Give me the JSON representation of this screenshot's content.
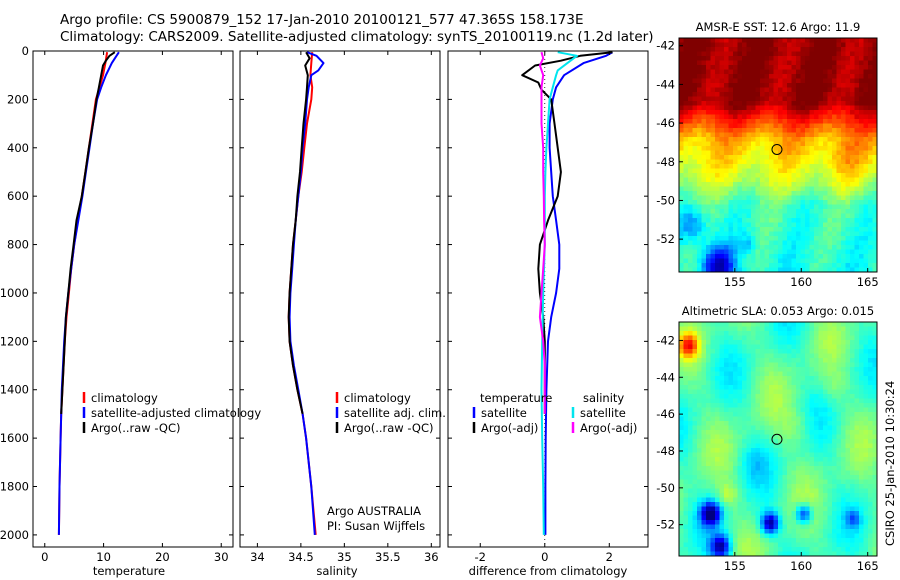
{
  "header": {
    "line1": "Argo profile: CS 5900879_152 17-Jan-2010 20100121_577 47.365S 158.173E",
    "line2": "Climatology: CARS2009. Satellite-adjusted climatology: synTS_20100119.nc (1.2d later)"
  },
  "credit": {
    "org": "Argo AUSTRALIA",
    "pi": "PI: Susan Wijffels",
    "stamp": "CSIRO 25-Jan-2010 10:30:24"
  },
  "colors": {
    "climatology": "#ff0000",
    "satellite": "#0000ff",
    "argo": "#000000",
    "sat_diff_sal": "#00e5ee",
    "argo_diff_sal": "#ff00ff"
  },
  "chart_data": [
    {
      "type": "line",
      "xlabel": "temperature",
      "xlim": [
        -2,
        32
      ],
      "xticks": [
        0,
        10,
        20,
        30
      ],
      "ylim": [
        2050,
        0
      ],
      "yticks": [
        0,
        200,
        400,
        600,
        800,
        1000,
        1200,
        1400,
        1600,
        1800,
        2000
      ],
      "legend": [
        "climatology",
        "satellite-adjusted climatology",
        "Argo(..raw -QC)"
      ],
      "series": [
        {
          "name": "climatology",
          "color": "red",
          "depth": [
            5,
            50,
            100,
            150,
            200,
            300,
            400,
            500,
            600,
            700,
            800,
            900,
            1000,
            1100,
            1200,
            1300,
            1400,
            1500,
            1600,
            1800,
            2000
          ],
          "values": [
            10.6,
            10.3,
            9.9,
            9.3,
            8.7,
            8.1,
            7.5,
            6.9,
            6.3,
            5.6,
            5.0,
            4.5,
            4.1,
            3.7,
            3.4,
            3.2,
            3.0,
            2.8,
            2.7,
            2.5,
            2.4
          ]
        },
        {
          "name": "satellite-adjusted climatology",
          "color": "blue",
          "depth": [
            5,
            20,
            50,
            100,
            150,
            200,
            300,
            400,
            500,
            600,
            700,
            800,
            900,
            1000,
            1100,
            1200,
            1300,
            1400,
            1500,
            1600,
            1800,
            2000
          ],
          "values": [
            12.6,
            12.2,
            11.4,
            10.4,
            9.6,
            8.9,
            8.2,
            7.6,
            7.0,
            6.4,
            5.7,
            5.0,
            4.5,
            4.0,
            3.6,
            3.3,
            3.1,
            2.9,
            2.8,
            2.7,
            2.5,
            2.4
          ]
        },
        {
          "name": "Argo(..raw -QC)",
          "color": "black",
          "depth": [
            5,
            20,
            40,
            60,
            100,
            150,
            200,
            300,
            400,
            500,
            600,
            700,
            800,
            900,
            1000,
            1100,
            1200,
            1300,
            1400,
            1500
          ],
          "values": [
            11.9,
            11.0,
            10.4,
            9.9,
            9.6,
            9.2,
            8.8,
            8.2,
            7.5,
            6.9,
            6.3,
            5.4,
            4.9,
            4.4,
            4.0,
            3.6,
            3.4,
            3.2,
            3.0,
            2.8
          ]
        }
      ]
    },
    {
      "type": "line",
      "xlabel": "salinity",
      "xlim": [
        33.8,
        36.1
      ],
      "xticks": [
        34,
        34.5,
        35,
        35.5,
        36
      ],
      "ylim": [
        2050,
        0
      ],
      "legend": [
        "climatology",
        "satellite adj. clim.",
        "Argo(..raw -QC)"
      ],
      "series": [
        {
          "name": "climatology",
          "color": "red",
          "depth": [
            5,
            50,
            100,
            150,
            200,
            300,
            400,
            500,
            600,
            700,
            800,
            900,
            1000,
            1100,
            1200,
            1300,
            1400,
            1500,
            1600,
            1800,
            2000
          ],
          "values": [
            34.63,
            34.62,
            34.61,
            34.63,
            34.62,
            34.57,
            34.54,
            34.51,
            34.47,
            34.44,
            34.41,
            34.39,
            34.37,
            34.36,
            34.37,
            34.41,
            34.46,
            34.52,
            34.56,
            34.62,
            34.67
          ]
        },
        {
          "name": "satellite adj. clim.",
          "color": "blue",
          "depth": [
            5,
            20,
            50,
            80,
            100,
            150,
            200,
            300,
            400,
            500,
            600,
            700,
            800,
            900,
            1000,
            1100,
            1200,
            1300,
            1400,
            1500,
            1600,
            1800,
            2000
          ],
          "values": [
            34.57,
            34.68,
            34.76,
            34.7,
            34.62,
            34.59,
            34.57,
            34.55,
            34.52,
            34.5,
            34.47,
            34.44,
            34.42,
            34.4,
            34.38,
            34.37,
            34.38,
            34.42,
            34.47,
            34.52,
            34.56,
            34.62,
            34.66
          ]
        },
        {
          "name": "Argo(..raw -QC)",
          "color": "black",
          "depth": [
            5,
            30,
            60,
            100,
            150,
            200,
            300,
            400,
            500,
            600,
            700,
            800,
            900,
            1000,
            1100,
            1200,
            1300,
            1400,
            1500
          ],
          "values": [
            34.56,
            34.6,
            34.55,
            34.58,
            34.57,
            34.56,
            34.53,
            34.51,
            34.49,
            34.46,
            34.44,
            34.41,
            34.39,
            34.37,
            34.36,
            34.37,
            34.41,
            34.46,
            34.52
          ]
        }
      ]
    },
    {
      "type": "line",
      "xlabel": "difference from climatology",
      "xlim": [
        -3,
        3.2
      ],
      "xticks": [
        -2,
        0,
        2
      ],
      "ylim": [
        2050,
        0
      ],
      "legend_groups": [
        {
          "heading": "temperature",
          "items": [
            "satellite",
            "Argo(-adj)"
          ]
        },
        {
          "heading": "salinity",
          "items": [
            "satellite",
            "Argo(-adj)"
          ]
        }
      ],
      "series": [
        {
          "name": "temperature satellite",
          "color": "blue",
          "depth": [
            5,
            20,
            50,
            100,
            150,
            200,
            300,
            400,
            500,
            600,
            700,
            800,
            900,
            1000,
            1100,
            1200,
            1400,
            1600,
            1800,
            2000
          ],
          "values": [
            2.1,
            1.9,
            1.2,
            0.6,
            0.35,
            0.25,
            0.15,
            0.15,
            0.2,
            0.25,
            0.35,
            0.45,
            0.45,
            0.35,
            0.2,
            0.1,
            0.05,
            0.03,
            0.02,
            0.02
          ]
        },
        {
          "name": "temperature Argo(-adj)",
          "color": "black",
          "depth": [
            5,
            20,
            40,
            60,
            100,
            130,
            160,
            200,
            300,
            400,
            500,
            600,
            700,
            800,
            900,
            1000,
            1100,
            1200,
            1300,
            1400,
            1500
          ],
          "values": [
            2.1,
            1.1,
            0.5,
            -0.3,
            -0.7,
            -0.2,
            -0.1,
            0.2,
            0.3,
            0.4,
            0.5,
            0.4,
            0.1,
            -0.15,
            -0.2,
            -0.15,
            -0.05,
            0.0,
            0.0,
            0.0,
            0.0
          ]
        },
        {
          "name": "salinity satellite",
          "color": "cyan",
          "depth": [
            5,
            20,
            50,
            80,
            100,
            150,
            200,
            300,
            400,
            500,
            600,
            700,
            800,
            1000,
            1200,
            1400,
            1600,
            1800,
            2000
          ],
          "values": [
            0.4,
            1.0,
            0.7,
            0.4,
            0.35,
            0.25,
            0.15,
            0.1,
            0.05,
            0.02,
            0.0,
            0.0,
            0.0,
            -0.05,
            -0.08,
            -0.1,
            -0.08,
            -0.05,
            -0.03
          ]
        },
        {
          "name": "salinity Argo(-adj)",
          "color": "magenta",
          "depth": [
            5,
            30,
            60,
            100,
            150,
            200,
            300,
            400,
            500,
            600,
            700,
            800,
            900,
            1000,
            1100,
            1200,
            1300,
            1400,
            1500
          ],
          "values": [
            -0.1,
            -0.05,
            -0.15,
            -0.05,
            -0.1,
            -0.1,
            -0.1,
            -0.05,
            -0.05,
            -0.03,
            -0.02,
            0.0,
            -0.05,
            -0.1,
            -0.15,
            -0.05,
            0.0,
            0.0,
            0.0
          ]
        }
      ]
    },
    {
      "type": "heatmap",
      "title": "AMSR-E SST: 12.6 Argo: 11.9",
      "xlim": [
        150.8,
        165.7
      ],
      "ylim": [
        -53.7,
        -41.6
      ],
      "xticks": [
        155,
        160,
        165
      ],
      "yticks": [
        -42,
        -44,
        -46,
        -48,
        -50,
        -52
      ],
      "marker": {
        "lon": 158.173,
        "lat": -47.365
      }
    },
    {
      "type": "heatmap",
      "title": "Altimetric SLA: 0.053 Argo: 0.015",
      "xlim": [
        150.8,
        165.7
      ],
      "ylim": [
        -53.7,
        -41.0
      ],
      "xticks": [
        155,
        160,
        165
      ],
      "yticks": [
        -42,
        -44,
        -46,
        -48,
        -50,
        -52
      ],
      "marker": {
        "lon": 158.173,
        "lat": -47.365
      }
    }
  ]
}
